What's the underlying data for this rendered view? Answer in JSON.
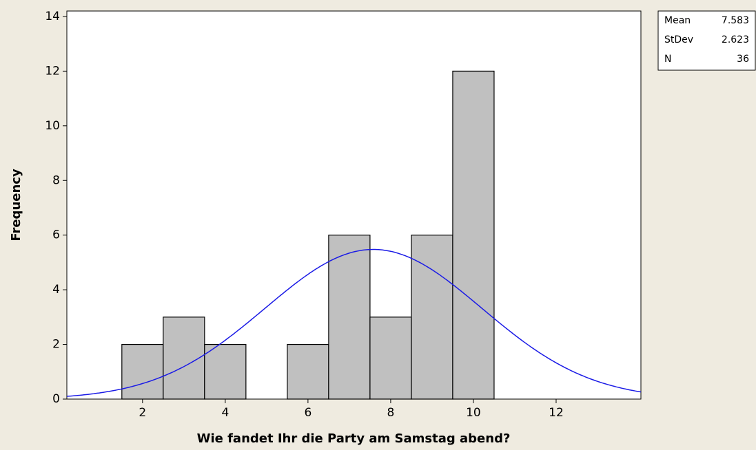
{
  "chart_data": {
    "type": "histogram",
    "x_label": "Wie fandet Ihr die Party am Samstag abend?",
    "y_label": "Frequency",
    "bins": [
      0.5,
      1.5,
      2.5,
      3.5,
      4.5,
      5.5,
      6.5,
      7.5,
      8.5,
      9.5,
      10.5
    ],
    "values": [
      0,
      2,
      3,
      2,
      0,
      2,
      6,
      3,
      6,
      12
    ],
    "color": "#c0c0c0",
    "xlim": [
      0.17,
      14.05
    ],
    "ylim": [
      0,
      14.2
    ],
    "xticks": [
      2,
      4,
      6,
      8,
      10,
      12
    ],
    "yticks": [
      0,
      2,
      4,
      6,
      8,
      10,
      12,
      14
    ],
    "fit": {
      "type": "normal",
      "color": "#1a1ae6"
    },
    "stats": [
      {
        "label": "Mean",
        "value": 7.583
      },
      {
        "label": "StDev",
        "value": 2.623
      },
      {
        "label": "N",
        "value": 36
      }
    ]
  }
}
